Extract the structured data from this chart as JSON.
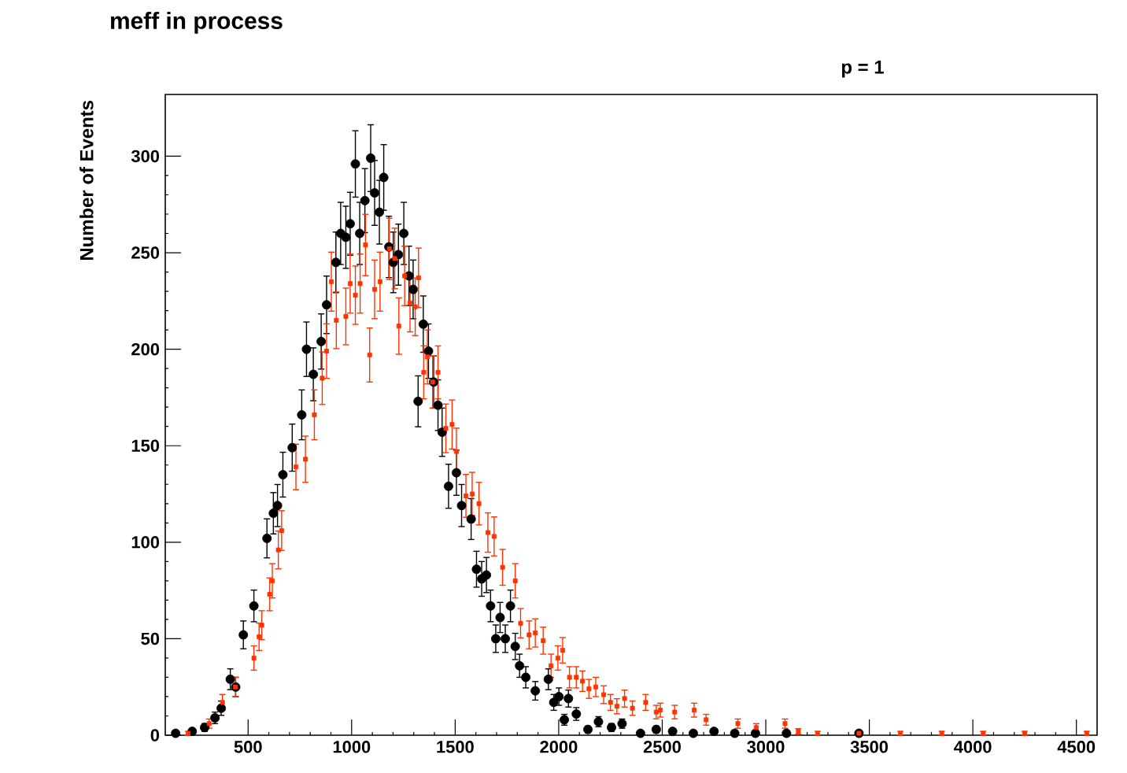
{
  "chart_data": {
    "type": "scatter",
    "title": "meff in process",
    "ylabel": "Number of Events",
    "annotations": [
      "p = 1"
    ],
    "xlim": [
      100,
      4600
    ],
    "ylim": [
      0,
      332
    ],
    "xticks": [
      500,
      1000,
      1500,
      2000,
      2500,
      3000,
      3500,
      4000,
      4500
    ],
    "yticks": [
      0,
      50,
      100,
      150,
      200,
      250,
      300
    ],
    "grid": false,
    "series": [
      {
        "color": "#000000",
        "marker": "circle",
        "x": [
          150,
          230,
          290,
          340,
          370,
          414,
          440,
          477,
          528,
          591,
          622,
          642,
          668,
          713,
          759,
          782,
          815,
          853,
          879,
          924,
          947,
          972,
          993,
          1018,
          1039,
          1064,
          1092,
          1111,
          1134,
          1155,
          1180,
          1201,
          1226,
          1252,
          1277,
          1297,
          1321,
          1346,
          1371,
          1396,
          1417,
          1437,
          1468,
          1506,
          1531,
          1577,
          1603,
          1628,
          1651,
          1671,
          1696,
          1717,
          1742,
          1767,
          1790,
          1811,
          1841,
          1887,
          1950,
          1976,
          2001,
          2027,
          2047,
          2085,
          2141,
          2192,
          2255,
          2306,
          2395,
          2471,
          2550,
          2650,
          2750,
          2850,
          2950,
          3100,
          3450
        ],
        "values": [
          1,
          2,
          4,
          9,
          14,
          29,
          25,
          52,
          67,
          102,
          115,
          119,
          135,
          149,
          166,
          200,
          187,
          204,
          223,
          245,
          260,
          258,
          265,
          296,
          260,
          277,
          299,
          281,
          271,
          289,
          253,
          245,
          249,
          260,
          238,
          231,
          173,
          213,
          199,
          183,
          171,
          157,
          129,
          136,
          119,
          112,
          86,
          81,
          83,
          67,
          50,
          61,
          50,
          67,
          46,
          36,
          30,
          23,
          29,
          17,
          20,
          8,
          19,
          11,
          3,
          7,
          4,
          6,
          1,
          3,
          2,
          1,
          2,
          1,
          1,
          1,
          1
        ],
        "errors": [
          1,
          1.4,
          2,
          3,
          3.7,
          5.4,
          5,
          7.2,
          8.2,
          10.1,
          10.7,
          10.9,
          11.6,
          12.2,
          12.9,
          14.1,
          13.7,
          14.3,
          14.9,
          15.7,
          16.1,
          16.1,
          16.3,
          17.2,
          16.1,
          16.6,
          17.3,
          16.8,
          16.5,
          17,
          15.9,
          15.7,
          15.8,
          16.1,
          15.4,
          15.2,
          13.2,
          14.6,
          14.1,
          13.5,
          13.1,
          12.5,
          11.4,
          11.7,
          10.9,
          10.6,
          9.3,
          9,
          9.1,
          8.2,
          7.1,
          7.8,
          7.1,
          8.2,
          6.8,
          6,
          5.5,
          4.8,
          5.4,
          4.1,
          4.5,
          2.8,
          4.4,
          3.3,
          1.7,
          2.6,
          2,
          2.4,
          1,
          1.7,
          1.4,
          1,
          1.4,
          1,
          1,
          1,
          1
        ]
      },
      {
        "color": "#ff3300",
        "marker": "square",
        "x": [
          210,
          312,
          376,
          439,
          528,
          553,
          566,
          604,
          617,
          646,
          662,
          731,
          777,
          820,
          858,
          879,
          902,
          926,
          972,
          993,
          1018,
          1041,
          1067,
          1087,
          1111,
          1137,
          1182,
          1208,
          1228,
          1256,
          1282,
          1307,
          1323,
          1348,
          1366,
          1391,
          1417,
          1455,
          1485,
          1506,
          1552,
          1582,
          1615,
          1658,
          1688,
          1729,
          1790,
          1816,
          1857,
          1887,
          1925,
          1963,
          1996,
          2019,
          2052,
          2085,
          2115,
          2146,
          2179,
          2217,
          2250,
          2281,
          2318,
          2356,
          2420,
          2471,
          2491,
          2560,
          2654,
          2712,
          2865,
          2954,
          3093,
          3157,
          3250,
          3450,
          3650,
          3850,
          4050,
          4250,
          4550
        ],
        "values": [
          1,
          6,
          17,
          25,
          40,
          51,
          57,
          73,
          80,
          96,
          106,
          139,
          143,
          166,
          185,
          199,
          235,
          215,
          217,
          234,
          228,
          234,
          254,
          197,
          231,
          235,
          252,
          247,
          212,
          238,
          224,
          222,
          237,
          188,
          196,
          183,
          188,
          159,
          161,
          147,
          124,
          125,
          120,
          105,
          103,
          87,
          80,
          58,
          52,
          53,
          49,
          36,
          40,
          44,
          30,
          30,
          28,
          24,
          25,
          21,
          17,
          15,
          19,
          14,
          17,
          12,
          13,
          12,
          13,
          8,
          6,
          4,
          6,
          2,
          1,
          1,
          1,
          1,
          1,
          1,
          1
        ],
        "errors": [
          1,
          2.4,
          4.1,
          5,
          6.3,
          7.1,
          7.5,
          8.5,
          8.9,
          9.8,
          10.3,
          11.8,
          12,
          12.9,
          13.6,
          14.1,
          15.3,
          14.7,
          14.7,
          15.3,
          15.1,
          15.3,
          15.9,
          14,
          15.2,
          15.3,
          15.9,
          15.7,
          14.6,
          15.4,
          15,
          14.9,
          15.4,
          13.7,
          14,
          13.5,
          13.7,
          12.6,
          12.7,
          12.1,
          11.1,
          11.2,
          11,
          10.2,
          10.1,
          9.3,
          8.9,
          7.6,
          7.2,
          7.3,
          7,
          6,
          6.3,
          6.6,
          5.5,
          5.5,
          5.3,
          4.9,
          5,
          4.6,
          4.1,
          3.9,
          4.4,
          3.7,
          4.1,
          3.5,
          3.6,
          3.5,
          3.6,
          2.8,
          2.4,
          2,
          2.4,
          1.4,
          1,
          1,
          1,
          1,
          1,
          1,
          1
        ]
      }
    ]
  }
}
